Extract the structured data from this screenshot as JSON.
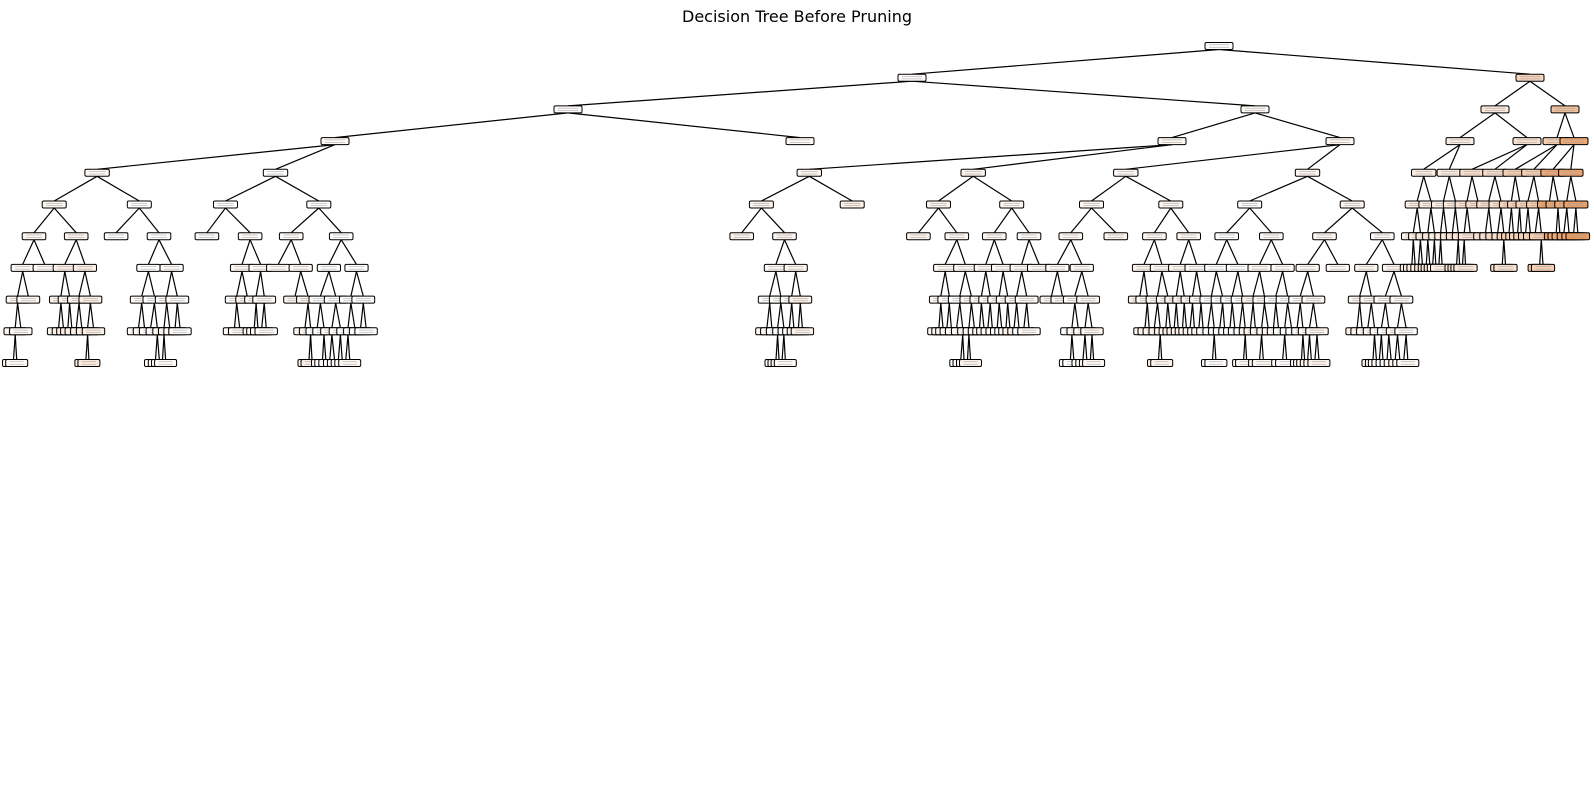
{
  "title": "Decision Tree Before Pruning",
  "tree": {
    "orientation": "top-down",
    "node_text_legible": false,
    "fill_color_low": "#ffffff",
    "fill_color_high": "#e58139",
    "edge_color": "#000000",
    "node_border_color": "#000000"
  }
}
